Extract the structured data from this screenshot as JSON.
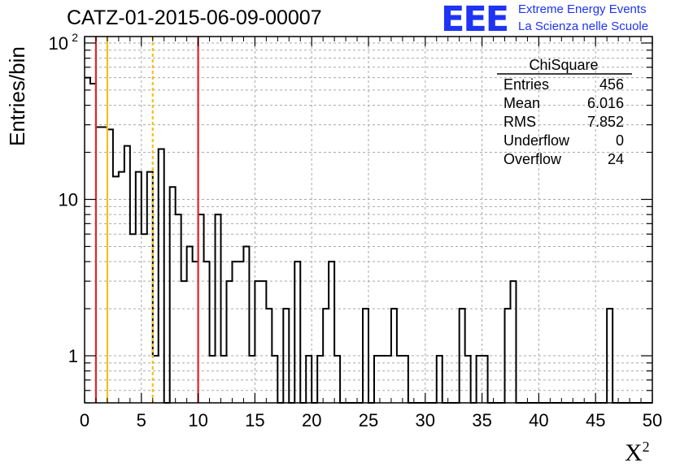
{
  "header": {
    "title": "CATZ-01-2015-06-09-00007",
    "logo": "EEE",
    "logo_line1": "Extreme Energy Events",
    "logo_line2": "La Scienza nelle Scuole"
  },
  "stats": {
    "name": "ChiSquare",
    "rows": [
      {
        "label": "Entries",
        "value": "456"
      },
      {
        "label": "Mean",
        "value": "6.016"
      },
      {
        "label": "RMS",
        "value": "7.852"
      },
      {
        "label": "Underflow",
        "value": "0"
      },
      {
        "label": "Overflow",
        "value": "24"
      }
    ]
  },
  "chart_data": {
    "type": "histogram",
    "xlabel": "X",
    "xlabel_sup": "2",
    "ylabel": "Entries/bin",
    "xlim": [
      0,
      50
    ],
    "ylim": [
      0.5,
      110
    ],
    "yscale": "log",
    "grid": true,
    "bin_width": 0.5,
    "x_ticks": [
      0,
      5,
      10,
      15,
      20,
      25,
      30,
      35,
      40,
      45,
      50
    ],
    "y_ticks": [
      {
        "value": 1,
        "label": "1"
      },
      {
        "value": 10,
        "label": "10"
      },
      {
        "value": 100,
        "label": "10",
        "sup": "2"
      }
    ],
    "bins": [
      {
        "x": 0.0,
        "count": 60
      },
      {
        "x": 0.5,
        "count": 55
      },
      {
        "x": 1.0,
        "count": 29
      },
      {
        "x": 1.5,
        "count": 29
      },
      {
        "x": 2.0,
        "count": 28
      },
      {
        "x": 2.5,
        "count": 14
      },
      {
        "x": 3.0,
        "count": 15
      },
      {
        "x": 3.5,
        "count": 22
      },
      {
        "x": 4.0,
        "count": 6
      },
      {
        "x": 4.5,
        "count": 15
      },
      {
        "x": 5.0,
        "count": 6
      },
      {
        "x": 5.5,
        "count": 15
      },
      {
        "x": 6.0,
        "count": 1
      },
      {
        "x": 6.5,
        "count": 21
      },
      {
        "x": 7.0,
        "count": 0
      },
      {
        "x": 7.5,
        "count": 12
      },
      {
        "x": 8.0,
        "count": 8
      },
      {
        "x": 8.5,
        "count": 3
      },
      {
        "x": 9.0,
        "count": 5
      },
      {
        "x": 9.5,
        "count": 4
      },
      {
        "x": 10.0,
        "count": 8
      },
      {
        "x": 10.5,
        "count": 4
      },
      {
        "x": 11.0,
        "count": 1
      },
      {
        "x": 11.5,
        "count": 8
      },
      {
        "x": 12.0,
        "count": 1
      },
      {
        "x": 12.5,
        "count": 3
      },
      {
        "x": 13.0,
        "count": 4
      },
      {
        "x": 13.5,
        "count": 4
      },
      {
        "x": 14.0,
        "count": 5
      },
      {
        "x": 14.5,
        "count": 1
      },
      {
        "x": 15.0,
        "count": 3
      },
      {
        "x": 15.5,
        "count": 3
      },
      {
        "x": 16.0,
        "count": 2
      },
      {
        "x": 16.5,
        "count": 1
      },
      {
        "x": 17.0,
        "count": 0
      },
      {
        "x": 17.5,
        "count": 2
      },
      {
        "x": 18.0,
        "count": 0
      },
      {
        "x": 18.5,
        "count": 4
      },
      {
        "x": 19.0,
        "count": 0
      },
      {
        "x": 19.5,
        "count": 1
      },
      {
        "x": 20.0,
        "count": 0
      },
      {
        "x": 20.5,
        "count": 1
      },
      {
        "x": 21.0,
        "count": 2
      },
      {
        "x": 21.5,
        "count": 4
      },
      {
        "x": 22.0,
        "count": 1
      },
      {
        "x": 22.5,
        "count": 0
      },
      {
        "x": 23.0,
        "count": 0
      },
      {
        "x": 23.5,
        "count": 0
      },
      {
        "x": 24.0,
        "count": 0
      },
      {
        "x": 24.5,
        "count": 2
      },
      {
        "x": 25.0,
        "count": 0
      },
      {
        "x": 25.5,
        "count": 1
      },
      {
        "x": 26.0,
        "count": 1
      },
      {
        "x": 26.5,
        "count": 1
      },
      {
        "x": 27.0,
        "count": 2
      },
      {
        "x": 27.5,
        "count": 1
      },
      {
        "x": 28.0,
        "count": 1
      },
      {
        "x": 28.5,
        "count": 0
      },
      {
        "x": 29.0,
        "count": 0
      },
      {
        "x": 29.5,
        "count": 0
      },
      {
        "x": 30.0,
        "count": 0
      },
      {
        "x": 30.5,
        "count": 0
      },
      {
        "x": 31.0,
        "count": 1
      },
      {
        "x": 31.5,
        "count": 0
      },
      {
        "x": 32.0,
        "count": 0
      },
      {
        "x": 32.5,
        "count": 0
      },
      {
        "x": 33.0,
        "count": 2
      },
      {
        "x": 33.5,
        "count": 1
      },
      {
        "x": 34.0,
        "count": 0
      },
      {
        "x": 34.5,
        "count": 1
      },
      {
        "x": 35.0,
        "count": 1
      },
      {
        "x": 35.5,
        "count": 0
      },
      {
        "x": 36.0,
        "count": 0
      },
      {
        "x": 36.5,
        "count": 0
      },
      {
        "x": 37.0,
        "count": 2
      },
      {
        "x": 37.5,
        "count": 3
      },
      {
        "x": 38.0,
        "count": 0
      },
      {
        "x": 38.5,
        "count": 0
      },
      {
        "x": 39.0,
        "count": 0
      },
      {
        "x": 39.5,
        "count": 0
      },
      {
        "x": 40.0,
        "count": 0
      },
      {
        "x": 40.5,
        "count": 0
      },
      {
        "x": 41.0,
        "count": 0
      },
      {
        "x": 41.5,
        "count": 0
      },
      {
        "x": 42.0,
        "count": 0
      },
      {
        "x": 42.5,
        "count": 0
      },
      {
        "x": 43.0,
        "count": 0
      },
      {
        "x": 43.5,
        "count": 0
      },
      {
        "x": 44.0,
        "count": 0
      },
      {
        "x": 44.5,
        "count": 0
      },
      {
        "x": 45.0,
        "count": 0
      },
      {
        "x": 45.5,
        "count": 0
      },
      {
        "x": 46.0,
        "count": 2
      },
      {
        "x": 46.5,
        "count": 0
      },
      {
        "x": 47.0,
        "count": 0
      },
      {
        "x": 47.5,
        "count": 0
      },
      {
        "x": 48.0,
        "count": 0
      },
      {
        "x": 48.5,
        "count": 0
      },
      {
        "x": 49.0,
        "count": 0
      },
      {
        "x": 49.5,
        "count": 0
      }
    ],
    "vertical_lines": [
      {
        "x": 1,
        "color": "#e8202a",
        "style": "solid"
      },
      {
        "x": 2,
        "color": "#f2c21a",
        "style": "solid"
      },
      {
        "x": 6,
        "color": "#f2c21a",
        "style": "dashed"
      },
      {
        "x": 10,
        "color": "#e8202a",
        "style": "solid"
      }
    ],
    "histogram_color": "#000000"
  }
}
